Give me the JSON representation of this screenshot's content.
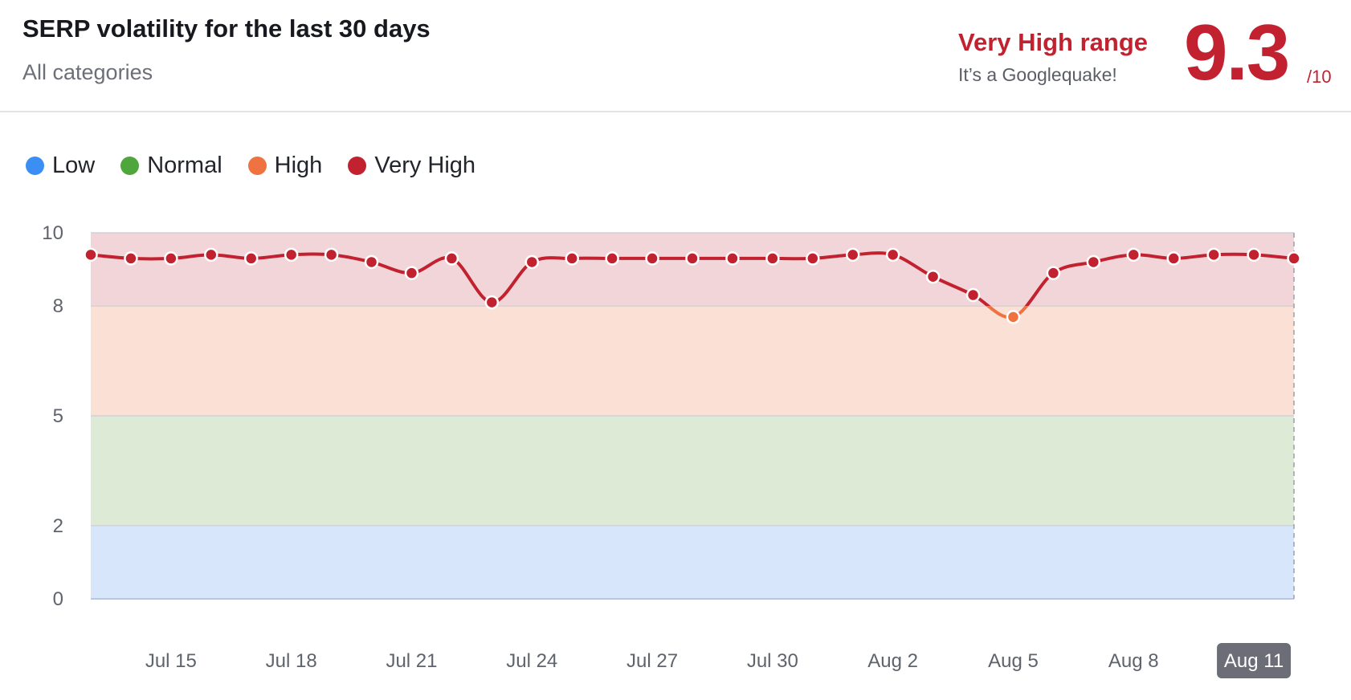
{
  "header": {
    "title": "SERP volatility for the last 30 days",
    "subtitle": "All categories",
    "range_label": "Very High range",
    "range_note": "It’s a Googlequake!",
    "score": "9.3",
    "score_max": "/10"
  },
  "legend": [
    {
      "label": "Low",
      "color": "#3b8ff2"
    },
    {
      "label": "Normal",
      "color": "#4ea63c"
    },
    {
      "label": "High",
      "color": "#ee7340"
    },
    {
      "label": "Very High",
      "color": "#c2222f"
    }
  ],
  "colors": {
    "very_high_line": "#c2222f",
    "high_line": "#ee7340",
    "band_low": "#d7e6fb",
    "band_normal": "#ddebd6",
    "band_high": "#fbe0d6",
    "band_very_high": "#f2d5d8",
    "badge": "#6b6e77"
  },
  "chart_data": {
    "type": "line",
    "title": "SERP volatility for the last 30 days",
    "xlabel": "",
    "ylabel": "",
    "ylim": [
      0,
      10
    ],
    "y_ticks": [
      0,
      2,
      5,
      8,
      10
    ],
    "bands": [
      {
        "name": "Low",
        "from": 0,
        "to": 2
      },
      {
        "name": "Normal",
        "from": 2,
        "to": 5
      },
      {
        "name": "High",
        "from": 5,
        "to": 8
      },
      {
        "name": "Very High",
        "from": 8,
        "to": 10
      }
    ],
    "x_tick_labels": [
      "Jul 15",
      "Jul 18",
      "Jul 21",
      "Jul 24",
      "Jul 27",
      "Jul 30",
      "Aug 2",
      "Aug 5",
      "Aug 8",
      "Aug 11"
    ],
    "x_tick_indices": [
      2,
      5,
      8,
      11,
      14,
      17,
      20,
      23,
      26,
      29
    ],
    "highlighted_date": "Aug 11",
    "grid": true,
    "legend_position": "top-left",
    "series": [
      {
        "values": [
          9.4,
          9.3,
          9.3,
          9.4,
          9.3,
          9.4,
          9.4,
          9.2,
          8.9,
          9.3,
          8.1,
          9.2,
          9.3,
          9.3,
          9.3,
          9.3,
          9.3,
          9.3,
          9.3,
          9.4,
          9.4,
          8.8,
          8.3,
          7.7,
          8.9,
          9.2,
          9.4,
          9.3,
          9.4,
          9.4,
          9.3
        ]
      }
    ]
  }
}
